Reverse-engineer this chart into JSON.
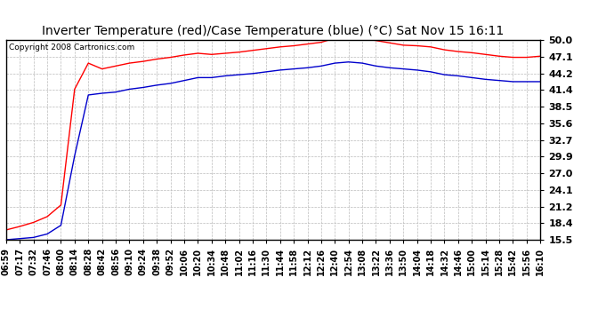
{
  "title": "Inverter Temperature (red)/Case Temperature (blue) (°C) Sat Nov 15 16:11",
  "copyright": "Copyright 2008 Cartronics.com",
  "background_color": "#ffffff",
  "plot_bg_color": "#ffffff",
  "grid_color": "#bbbbbb",
  "yticks": [
    15.5,
    18.4,
    21.2,
    24.1,
    27.0,
    29.9,
    32.7,
    35.6,
    38.5,
    41.4,
    44.2,
    47.1,
    50.0
  ],
  "xtick_labels": [
    "06:59",
    "07:17",
    "07:32",
    "07:46",
    "08:00",
    "08:14",
    "08:28",
    "08:42",
    "08:56",
    "09:10",
    "09:24",
    "09:38",
    "09:52",
    "10:06",
    "10:20",
    "10:34",
    "10:48",
    "11:02",
    "11:16",
    "11:30",
    "11:44",
    "11:58",
    "12:12",
    "12:26",
    "12:40",
    "12:54",
    "13:08",
    "13:22",
    "13:36",
    "13:50",
    "14:04",
    "14:18",
    "14:32",
    "14:46",
    "15:00",
    "15:14",
    "15:28",
    "15:42",
    "15:56",
    "16:10"
  ],
  "red_line": {
    "color": "#ff0000",
    "data": [
      17.2,
      17.8,
      18.5,
      19.5,
      21.5,
      41.5,
      46.0,
      45.0,
      45.5,
      46.0,
      46.3,
      46.7,
      47.0,
      47.4,
      47.7,
      47.5,
      47.7,
      47.9,
      48.2,
      48.5,
      48.8,
      49.0,
      49.3,
      49.6,
      50.3,
      50.6,
      50.3,
      49.9,
      49.5,
      49.1,
      49.0,
      48.8,
      48.3,
      48.0,
      47.8,
      47.5,
      47.2,
      47.0,
      47.0,
      47.2
    ]
  },
  "blue_line": {
    "color": "#0000cc",
    "data": [
      15.5,
      15.7,
      15.9,
      16.5,
      18.0,
      30.0,
      40.5,
      40.8,
      41.0,
      41.5,
      41.8,
      42.2,
      42.5,
      43.0,
      43.5,
      43.5,
      43.8,
      44.0,
      44.2,
      44.5,
      44.8,
      45.0,
      45.2,
      45.5,
      46.0,
      46.2,
      46.0,
      45.5,
      45.2,
      45.0,
      44.8,
      44.5,
      44.0,
      43.8,
      43.5,
      43.2,
      43.0,
      42.8,
      42.8,
      42.8
    ]
  },
  "ylim": [
    15.5,
    50.0
  ],
  "title_fontsize": 10,
  "copyright_fontsize": 6.5,
  "tick_fontsize": 7,
  "ytick_fontsize": 8,
  "figsize": [
    6.9,
    3.75
  ],
  "dpi": 100
}
